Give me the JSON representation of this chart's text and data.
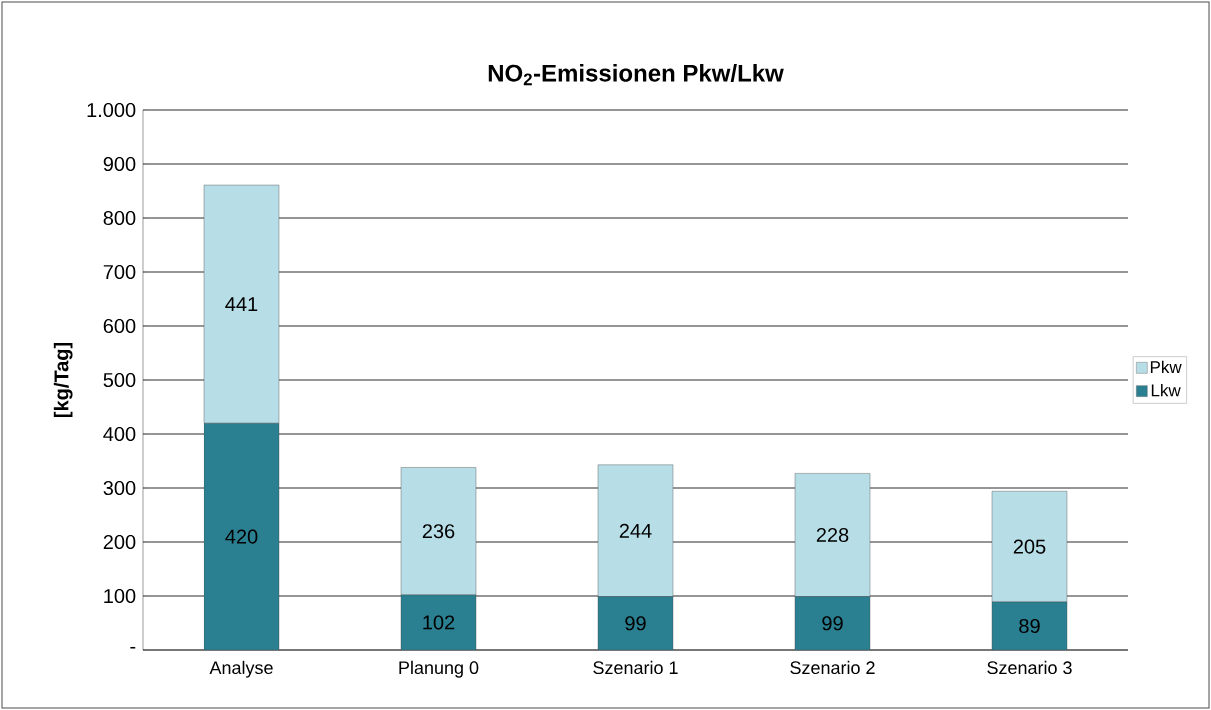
{
  "chart_data": {
    "type": "bar",
    "title": "NO$_{2}$-Emissionen Pkw/Lkw",
    "ylabel": "[kg/Tag]",
    "categories": [
      "Analyse",
      "Planung 0",
      "Szenario 1",
      "Szenario 2",
      "Szenario 3"
    ],
    "series": [
      {
        "name": "Lkw",
        "color": "#2a7f91",
        "values": [
          420,
          102,
          99,
          99,
          89
        ]
      },
      {
        "name": "Pkw",
        "color": "#b7dde6",
        "values": [
          441,
          236,
          244,
          228,
          205
        ]
      }
    ],
    "stacked": true,
    "data_labels": true,
    "ylim": [
      0,
      1000
    ],
    "yticks": [
      {
        "value": 0,
        "label": "-"
      },
      100,
      200,
      300,
      400,
      500,
      600,
      700,
      800,
      900,
      {
        "value": 1000,
        "label": "1.000"
      }
    ],
    "grid": "y",
    "legend": "right"
  }
}
